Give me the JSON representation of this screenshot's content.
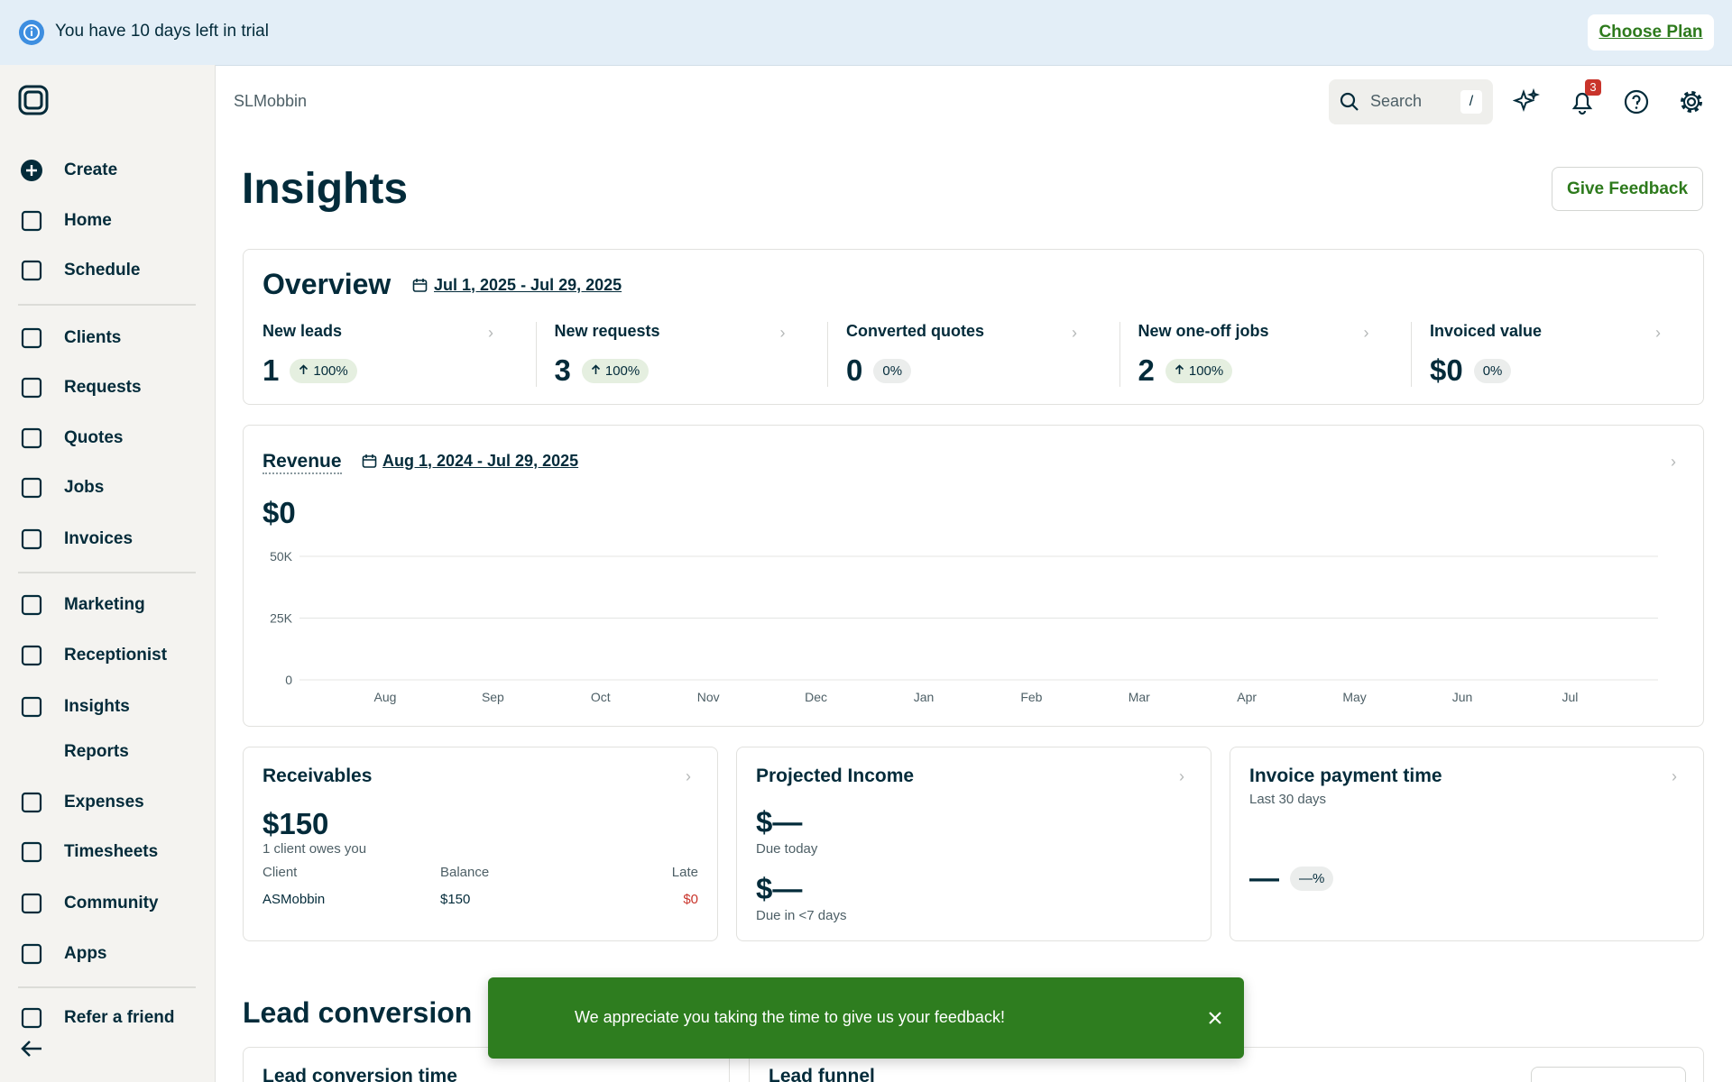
{
  "banner": {
    "text": "You have 10 days left in trial",
    "button": "Choose Plan"
  },
  "sidebar": {
    "items": [
      "Create",
      "Home",
      "Schedule",
      "Clients",
      "Requests",
      "Quotes",
      "Jobs",
      "Invoices",
      "Marketing",
      "Receptionist",
      "Insights",
      "Reports",
      "Expenses",
      "Timesheets",
      "Community",
      "Apps",
      "Refer a friend"
    ]
  },
  "header": {
    "breadcrumb": "SLMobbin",
    "search": "Search",
    "search_key": "/",
    "notifications": 3
  },
  "page": {
    "title": "Insights",
    "feedback_button": "Give Feedback"
  },
  "overview": {
    "title": "Overview",
    "date_range": "Jul 1, 2025 - Jul 29, 2025",
    "metrics": [
      {
        "label": "New leads",
        "value": 1,
        "change": "100%"
      },
      {
        "label": "New requests",
        "value": 3,
        "change": "100%"
      },
      {
        "label": "Converted quotes",
        "value": 0,
        "change": "0%"
      },
      {
        "label": "New one-off jobs",
        "value": 2,
        "change": "100%"
      },
      {
        "label": "Invoiced value",
        "value": "$0",
        "change": "0%"
      }
    ]
  },
  "revenue": {
    "title": "Revenue",
    "date_range": "Aug 1, 2024 - Jul 29, 2025",
    "total": "$0",
    "chart": {
      "categories": [
        "Aug",
        "Sep",
        "Oct",
        "Nov",
        "Dec",
        "Jan",
        "Feb",
        "Mar",
        "Apr",
        "May",
        "Jun",
        "Jul"
      ],
      "ylim": [
        0,
        50000
      ],
      "yticks": [
        0,
        {
          "value": 25000,
          "label": "25K"
        },
        {
          "value": 50000,
          "label": "50K"
        }
      ]
    }
  },
  "receivables": {
    "title": "Receivables",
    "total": "$150",
    "subtitle": "1 client owes you",
    "columns": [
      "Client",
      "Balance",
      "Late"
    ],
    "rows": [
      [
        "ASMobbin",
        "$150",
        "$0"
      ]
    ]
  },
  "projected_income": {
    "title": "Projected Income",
    "items": [
      {
        "value": "$—",
        "label": "Due today"
      },
      {
        "value": "$—",
        "label": "Due in <7 days"
      }
    ]
  },
  "invoice_payment_time": {
    "title": "Invoice payment time",
    "subtitle": "Last 30 days",
    "value": "—",
    "change": "—%"
  },
  "lead_conversion": {
    "title": "Lead conversion",
    "cards": [
      "Lead conversion time",
      "Lead funnel"
    ]
  },
  "toast": {
    "text": "We appreciate you taking the time to give us your feedback!"
  }
}
